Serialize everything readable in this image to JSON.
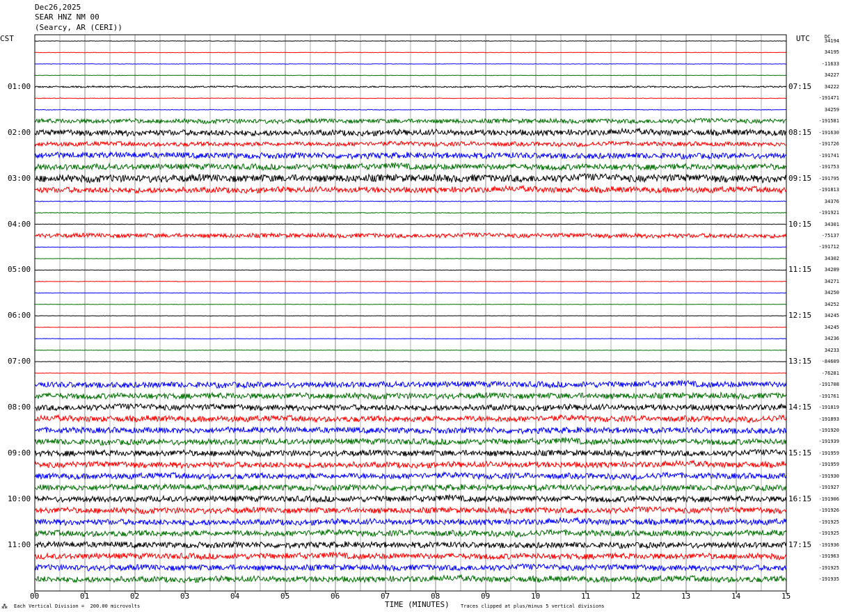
{
  "header": {
    "date": "Dec26,2025",
    "station": "SEAR HNZ NM 00",
    "location": "(Searcy, AR (CERI))"
  },
  "left_tz": "CST",
  "right_tz": "UTC",
  "dc_label": "DC",
  "footer": {
    "logo": "⁂",
    "scale": "Each Vertical Division =  200.00 microvolts",
    "xlabel": "TIME (MINUTES)",
    "clip": "Traces clipped at plus/minus 5 vertical divisions"
  },
  "chart_data": {
    "type": "line",
    "xlabel": "TIME (MINUTES)",
    "x_ticks": [
      "00",
      "01",
      "02",
      "03",
      "04",
      "05",
      "06",
      "07",
      "08",
      "09",
      "10",
      "11",
      "12",
      "13",
      "14",
      "15"
    ],
    "xlim": [
      0,
      15
    ],
    "grid": true,
    "trace_colors": [
      "#000000",
      "#ff0000",
      "#0000ff",
      "#007000"
    ],
    "left_hour_labels": [
      {
        "row": 4,
        "label": "01:00"
      },
      {
        "row": 8,
        "label": "02:00"
      },
      {
        "row": 12,
        "label": "03:00"
      },
      {
        "row": 16,
        "label": "04:00"
      },
      {
        "row": 20,
        "label": "05:00"
      },
      {
        "row": 24,
        "label": "06:00"
      },
      {
        "row": 28,
        "label": "07:00"
      },
      {
        "row": 32,
        "label": "08:00"
      },
      {
        "row": 36,
        "label": "09:00"
      },
      {
        "row": 40,
        "label": "10:00"
      },
      {
        "row": 44,
        "label": "11:00"
      }
    ],
    "right_hour_labels": [
      {
        "row": 4,
        "label": "07:15"
      },
      {
        "row": 8,
        "label": "08:15"
      },
      {
        "row": 12,
        "label": "09:15"
      },
      {
        "row": 16,
        "label": "10:15"
      },
      {
        "row": 20,
        "label": "11:15"
      },
      {
        "row": 24,
        "label": "12:15"
      },
      {
        "row": 28,
        "label": "13:15"
      },
      {
        "row": 32,
        "label": "14:15"
      },
      {
        "row": 36,
        "label": "15:15"
      },
      {
        "row": 40,
        "label": "16:15"
      },
      {
        "row": 44,
        "label": "17:15"
      }
    ],
    "dc_offsets": [
      "34194",
      "34195",
      "-11633",
      "34227",
      "34222",
      "-191471",
      "34259",
      "-191581",
      "-191630",
      "-191726",
      "-191741",
      "-191753",
      "-191795",
      "-191813",
      "34376",
      "-191921",
      "34301",
      "-75137",
      "-191712",
      "34302",
      "34289",
      "34271",
      "34250",
      "34252",
      "34245",
      "34245",
      "34236",
      "34233",
      "-84609",
      "-76281",
      "-191708",
      "-191761",
      "-191819",
      "-191893",
      "-191920",
      "-191939",
      "-191959",
      "-191959",
      "-191930",
      "-191927",
      "-191906",
      "-191926",
      "-191925",
      "-191925",
      "-191936",
      "-191963",
      "-191925",
      "-191935"
    ],
    "trace_noise": [
      0.3,
      0.3,
      0.3,
      0.3,
      1,
      0.4,
      0.4,
      3,
      4,
      3,
      4,
      4,
      5,
      4,
      0.5,
      0.5,
      0.3,
      3,
      0.3,
      0.3,
      0.3,
      0.3,
      0.3,
      0.3,
      0.3,
      0.3,
      0.3,
      0.3,
      0.3,
      0.3,
      4,
      4,
      4,
      4,
      4,
      4,
      4,
      4,
      4,
      4,
      4,
      4,
      4,
      4,
      4,
      4,
      4,
      4
    ]
  }
}
